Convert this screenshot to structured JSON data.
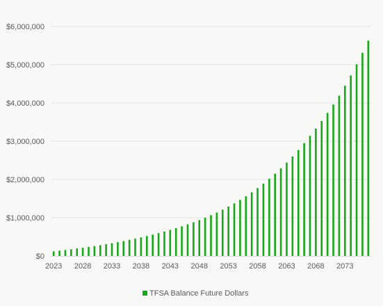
{
  "chart_data": {
    "type": "bar",
    "categories": [
      "2023",
      "2024",
      "2025",
      "2026",
      "2027",
      "2028",
      "2029",
      "2030",
      "2031",
      "2032",
      "2033",
      "2034",
      "2035",
      "2036",
      "2037",
      "2038",
      "2039",
      "2040",
      "2041",
      "2042",
      "2043",
      "2044",
      "2045",
      "2046",
      "2047",
      "2048",
      "2049",
      "2050",
      "2051",
      "2052",
      "2053",
      "2054",
      "2055",
      "2056",
      "2057",
      "2058",
      "2059",
      "2060",
      "2061",
      "2062",
      "2063",
      "2064",
      "2065",
      "2066",
      "2067",
      "2068",
      "2069",
      "2070",
      "2071",
      "2072",
      "2073",
      "2074",
      "2075",
      "2076",
      "2077"
    ],
    "x_tick_labels": [
      "2023",
      "2028",
      "2033",
      "2038",
      "2043",
      "2048",
      "2053",
      "2058",
      "2063",
      "2068",
      "2073"
    ],
    "series": [
      {
        "name": "TFSA Balance Future Dollars",
        "color": "#1aa61a",
        "values": [
          120000,
          138000,
          156000,
          175000,
          195000,
          214000,
          236000,
          258000,
          282000,
          307000,
          333000,
          360000,
          390000,
          420000,
          452000,
          486000,
          521000,
          558000,
          597000,
          638000,
          682000,
          727000,
          775000,
          826000,
          880000,
          938000,
          1000000,
          1065000,
          1135000,
          1210000,
          1290000,
          1375000,
          1465000,
          1560000,
          1665000,
          1775000,
          1890000,
          2015000,
          2150000,
          2290000,
          2440000,
          2600000,
          2770000,
          2950000,
          3140000,
          3330000,
          3530000,
          3740000,
          3960000,
          4190000,
          4450000,
          4720000,
          5010000,
          5310000,
          5630000
        ]
      }
    ],
    "y_tick_labels": [
      "$0",
      "$1,000,000",
      "$2,000,000",
      "$3,000,000",
      "$4,000,000",
      "$5,000,000",
      "$6,000,000"
    ],
    "ylim": [
      0,
      6000000
    ],
    "grid": true,
    "legend_position": "bottom"
  }
}
